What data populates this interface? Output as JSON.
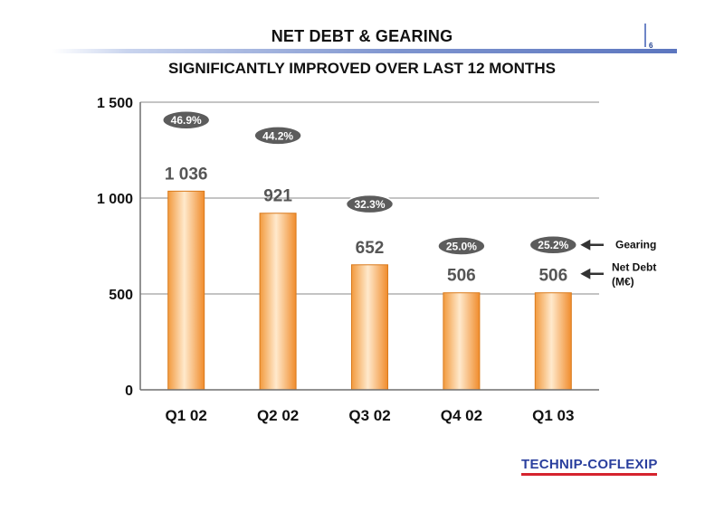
{
  "header": {
    "title": "NET DEBT & GEARING",
    "page_number": "6"
  },
  "subtitle": "SIGNIFICANTLY IMPROVED OVER LAST 12 MONTHS",
  "logo_text": "TECHNIP-COFLEXIP",
  "colors": {
    "bar": "#f5a04a",
    "bar_highlight": "#ffe6c4",
    "pill": "#5c5c5c",
    "grid": "#8a8a8a",
    "logo": "#2a3f9e",
    "logo_underline": "#d5232e"
  },
  "chart_data": {
    "type": "bar",
    "categories": [
      "Q1 02",
      "Q2 02",
      "Q3 02",
      "Q4 02",
      "Q1 03"
    ],
    "series": [
      {
        "name": "Net Debt",
        "values": [
          1036,
          921,
          652,
          506,
          506
        ],
        "value_labels": [
          "1 036",
          "921",
          "652",
          "506",
          "506"
        ]
      },
      {
        "name": "Gearing",
        "values": [
          46.9,
          44.2,
          32.3,
          25.0,
          25.2
        ],
        "value_labels": [
          "46.9%",
          "44.2%",
          "32.3%",
          "25.0%",
          "25.2%"
        ]
      }
    ],
    "y_ticks": [
      0,
      500,
      1000,
      1500
    ],
    "y_tick_labels": [
      "0",
      "500",
      "1 000",
      "1 500"
    ],
    "ylim": [
      0,
      1500
    ],
    "gearing_scale": [
      0,
      50
    ],
    "grid": true,
    "annotations": {
      "net_debt_line1": "Net Debt",
      "net_debt_line2": "(M€)",
      "gearing": "Gearing"
    }
  }
}
